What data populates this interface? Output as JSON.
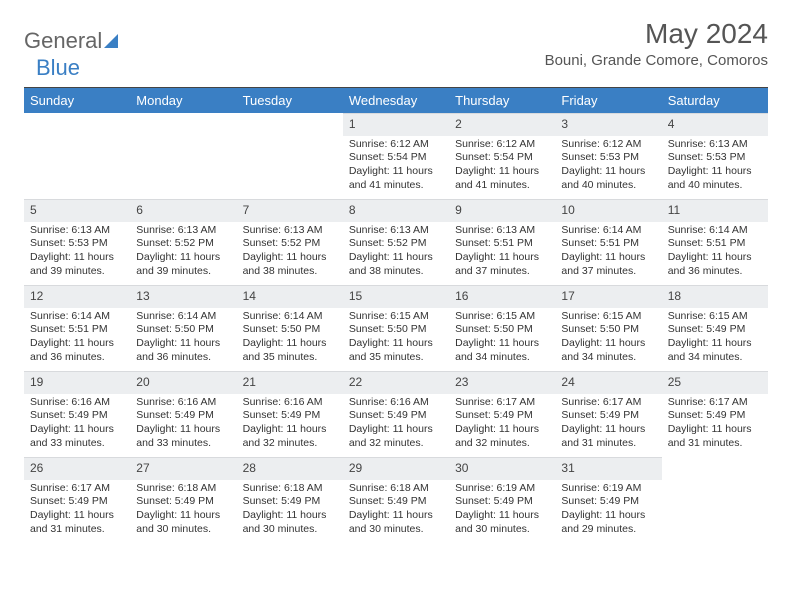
{
  "logo": {
    "part1": "General",
    "part2": "Blue"
  },
  "title": "May 2024",
  "location": "Bouni, Grande Comore, Comoros",
  "colors": {
    "header_bg": "#3a7fc4",
    "header_fg": "#ffffff",
    "daynum_bg": "#eceef0",
    "text": "#333333"
  },
  "weekdays": [
    "Sunday",
    "Monday",
    "Tuesday",
    "Wednesday",
    "Thursday",
    "Friday",
    "Saturday"
  ],
  "weeks": [
    [
      {
        "n": "",
        "sr": "",
        "ss": "",
        "dl": ""
      },
      {
        "n": "",
        "sr": "",
        "ss": "",
        "dl": ""
      },
      {
        "n": "",
        "sr": "",
        "ss": "",
        "dl": ""
      },
      {
        "n": "1",
        "sr": "Sunrise: 6:12 AM",
        "ss": "Sunset: 5:54 PM",
        "dl": "Daylight: 11 hours and 41 minutes."
      },
      {
        "n": "2",
        "sr": "Sunrise: 6:12 AM",
        "ss": "Sunset: 5:54 PM",
        "dl": "Daylight: 11 hours and 41 minutes."
      },
      {
        "n": "3",
        "sr": "Sunrise: 6:12 AM",
        "ss": "Sunset: 5:53 PM",
        "dl": "Daylight: 11 hours and 40 minutes."
      },
      {
        "n": "4",
        "sr": "Sunrise: 6:13 AM",
        "ss": "Sunset: 5:53 PM",
        "dl": "Daylight: 11 hours and 40 minutes."
      }
    ],
    [
      {
        "n": "5",
        "sr": "Sunrise: 6:13 AM",
        "ss": "Sunset: 5:53 PM",
        "dl": "Daylight: 11 hours and 39 minutes."
      },
      {
        "n": "6",
        "sr": "Sunrise: 6:13 AM",
        "ss": "Sunset: 5:52 PM",
        "dl": "Daylight: 11 hours and 39 minutes."
      },
      {
        "n": "7",
        "sr": "Sunrise: 6:13 AM",
        "ss": "Sunset: 5:52 PM",
        "dl": "Daylight: 11 hours and 38 minutes."
      },
      {
        "n": "8",
        "sr": "Sunrise: 6:13 AM",
        "ss": "Sunset: 5:52 PM",
        "dl": "Daylight: 11 hours and 38 minutes."
      },
      {
        "n": "9",
        "sr": "Sunrise: 6:13 AM",
        "ss": "Sunset: 5:51 PM",
        "dl": "Daylight: 11 hours and 37 minutes."
      },
      {
        "n": "10",
        "sr": "Sunrise: 6:14 AM",
        "ss": "Sunset: 5:51 PM",
        "dl": "Daylight: 11 hours and 37 minutes."
      },
      {
        "n": "11",
        "sr": "Sunrise: 6:14 AM",
        "ss": "Sunset: 5:51 PM",
        "dl": "Daylight: 11 hours and 36 minutes."
      }
    ],
    [
      {
        "n": "12",
        "sr": "Sunrise: 6:14 AM",
        "ss": "Sunset: 5:51 PM",
        "dl": "Daylight: 11 hours and 36 minutes."
      },
      {
        "n": "13",
        "sr": "Sunrise: 6:14 AM",
        "ss": "Sunset: 5:50 PM",
        "dl": "Daylight: 11 hours and 36 minutes."
      },
      {
        "n": "14",
        "sr": "Sunrise: 6:14 AM",
        "ss": "Sunset: 5:50 PM",
        "dl": "Daylight: 11 hours and 35 minutes."
      },
      {
        "n": "15",
        "sr": "Sunrise: 6:15 AM",
        "ss": "Sunset: 5:50 PM",
        "dl": "Daylight: 11 hours and 35 minutes."
      },
      {
        "n": "16",
        "sr": "Sunrise: 6:15 AM",
        "ss": "Sunset: 5:50 PM",
        "dl": "Daylight: 11 hours and 34 minutes."
      },
      {
        "n": "17",
        "sr": "Sunrise: 6:15 AM",
        "ss": "Sunset: 5:50 PM",
        "dl": "Daylight: 11 hours and 34 minutes."
      },
      {
        "n": "18",
        "sr": "Sunrise: 6:15 AM",
        "ss": "Sunset: 5:49 PM",
        "dl": "Daylight: 11 hours and 34 minutes."
      }
    ],
    [
      {
        "n": "19",
        "sr": "Sunrise: 6:16 AM",
        "ss": "Sunset: 5:49 PM",
        "dl": "Daylight: 11 hours and 33 minutes."
      },
      {
        "n": "20",
        "sr": "Sunrise: 6:16 AM",
        "ss": "Sunset: 5:49 PM",
        "dl": "Daylight: 11 hours and 33 minutes."
      },
      {
        "n": "21",
        "sr": "Sunrise: 6:16 AM",
        "ss": "Sunset: 5:49 PM",
        "dl": "Daylight: 11 hours and 32 minutes."
      },
      {
        "n": "22",
        "sr": "Sunrise: 6:16 AM",
        "ss": "Sunset: 5:49 PM",
        "dl": "Daylight: 11 hours and 32 minutes."
      },
      {
        "n": "23",
        "sr": "Sunrise: 6:17 AM",
        "ss": "Sunset: 5:49 PM",
        "dl": "Daylight: 11 hours and 32 minutes."
      },
      {
        "n": "24",
        "sr": "Sunrise: 6:17 AM",
        "ss": "Sunset: 5:49 PM",
        "dl": "Daylight: 11 hours and 31 minutes."
      },
      {
        "n": "25",
        "sr": "Sunrise: 6:17 AM",
        "ss": "Sunset: 5:49 PM",
        "dl": "Daylight: 11 hours and 31 minutes."
      }
    ],
    [
      {
        "n": "26",
        "sr": "Sunrise: 6:17 AM",
        "ss": "Sunset: 5:49 PM",
        "dl": "Daylight: 11 hours and 31 minutes."
      },
      {
        "n": "27",
        "sr": "Sunrise: 6:18 AM",
        "ss": "Sunset: 5:49 PM",
        "dl": "Daylight: 11 hours and 30 minutes."
      },
      {
        "n": "28",
        "sr": "Sunrise: 6:18 AM",
        "ss": "Sunset: 5:49 PM",
        "dl": "Daylight: 11 hours and 30 minutes."
      },
      {
        "n": "29",
        "sr": "Sunrise: 6:18 AM",
        "ss": "Sunset: 5:49 PM",
        "dl": "Daylight: 11 hours and 30 minutes."
      },
      {
        "n": "30",
        "sr": "Sunrise: 6:19 AM",
        "ss": "Sunset: 5:49 PM",
        "dl": "Daylight: 11 hours and 30 minutes."
      },
      {
        "n": "31",
        "sr": "Sunrise: 6:19 AM",
        "ss": "Sunset: 5:49 PM",
        "dl": "Daylight: 11 hours and 29 minutes."
      },
      {
        "n": "",
        "sr": "",
        "ss": "",
        "dl": ""
      }
    ]
  ]
}
